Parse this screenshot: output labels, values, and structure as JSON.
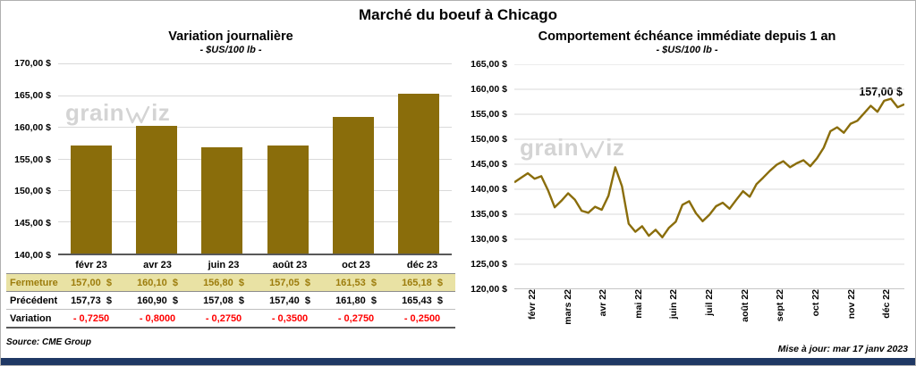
{
  "page": {
    "title": "Marché du boeuf à Chicago",
    "source": "Source: CME Group",
    "updated": "Mise à jour: mar 17 janv 2023",
    "watermark": {
      "part1": "grain",
      "part2": "iz"
    },
    "accent_color": "#8a6d0b",
    "footer_bar_color": "#1f3864"
  },
  "chart_data": [
    {
      "type": "bar",
      "title": "Variation journalière",
      "subtitle": "- $US/100 lb -",
      "categories": [
        "févr 23",
        "avr 23",
        "juin 23",
        "août 23",
        "oct 23",
        "déc 23"
      ],
      "values": [
        157.0,
        160.1,
        156.8,
        157.05,
        161.53,
        165.18
      ],
      "ylim": [
        140,
        170
      ],
      "y_tick_labels": [
        "170,00 $",
        "165,00 $",
        "160,00 $",
        "155,00 $",
        "150,00 $",
        "145,00 $",
        "140,00 $"
      ],
      "bar_color": "#8a6d0b",
      "grid": true,
      "legend": "none"
    },
    {
      "type": "line",
      "title": "Comportement échéance immédiate depuis 1 an",
      "subtitle": "- $US/100 lb -",
      "x_tick_labels": [
        "févr 22",
        "mars 22",
        "avr 22",
        "mai 22",
        "juin 22",
        "juil 22",
        "août 22",
        "sept 22",
        "oct 22",
        "nov 22",
        "déc 22"
      ],
      "values": [
        141.4,
        142.3,
        143.2,
        142.1,
        142.6,
        139.8,
        136.4,
        137.7,
        139.2,
        137.9,
        135.7,
        135.3,
        136.5,
        135.9,
        138.7,
        144.4,
        140.6,
        133.1,
        131.5,
        132.6,
        130.7,
        131.9,
        130.4,
        132.3,
        133.5,
        136.9,
        137.6,
        135.2,
        133.6,
        134.9,
        136.6,
        137.3,
        136.1,
        137.9,
        139.6,
        138.5,
        141.0,
        142.3,
        143.7,
        144.9,
        145.6,
        144.4,
        145.2,
        145.8,
        144.6,
        146.2,
        148.3,
        151.6,
        152.4,
        151.3,
        153.1,
        153.7,
        155.2,
        156.7,
        155.5,
        157.7,
        158.1,
        156.4,
        157.0
      ],
      "ylim": [
        120,
        165
      ],
      "y_tick_labels": [
        "165,00 $",
        "160,00 $",
        "155,00 $",
        "150,00 $",
        "145,00 $",
        "140,00 $",
        "135,00 $",
        "130,00 $",
        "125,00 $",
        "120,00 $"
      ],
      "line_color": "#8a6d0b",
      "annotation": "157,00 $",
      "grid": true,
      "legend": "none"
    }
  ],
  "table": {
    "rows": [
      {
        "label": "Fermeture",
        "style": "close",
        "values": [
          "157,00  $",
          "160,10  $",
          "156,80  $",
          "157,05  $",
          "161,53  $",
          "165,18  $"
        ]
      },
      {
        "label": "Précédent",
        "style": "previous",
        "values": [
          "157,73  $",
          "160,90  $",
          "157,08  $",
          "157,40  $",
          "161,80  $",
          "165,43  $"
        ]
      },
      {
        "label": "Variation",
        "style": "variation",
        "values": [
          "- 0,7250",
          "- 0,8000",
          "- 0,2750",
          "- 0,3500",
          "- 0,2750",
          "- 0,2500"
        ]
      }
    ]
  }
}
